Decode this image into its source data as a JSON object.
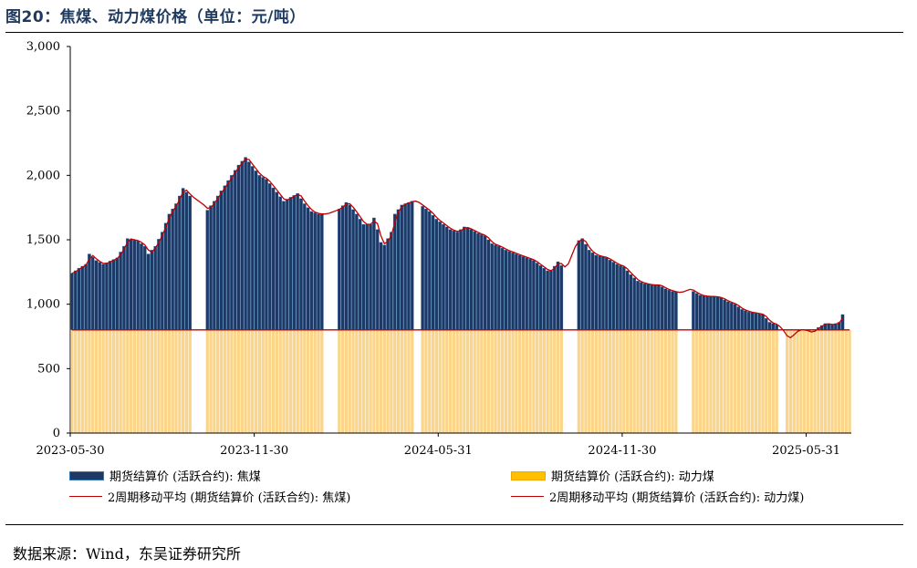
{
  "figure": {
    "title": "图20：焦煤、动力煤价格（单位：元/吨）",
    "source": "数据来源：Wind，东吴证券研究所"
  },
  "legend": {
    "coking_bar": "期货结算价 (活跃合约): 焦煤",
    "thermal_bar": "期货结算价 (活跃合约): 动力煤",
    "coking_ma": "2周期移动平均 (期货结算价 (活跃合约): 焦煤)",
    "thermal_ma": "2周期移动平均 (期货结算价 (活跃合约): 动力煤)"
  },
  "colors": {
    "coking": "#1f3864",
    "coking_edge": "#2e75b6",
    "thermal": "#ffc000",
    "thermal_fill": "#fbd58a",
    "ma": "#c00000"
  },
  "chart_data": {
    "type": "bar",
    "title": "焦煤、动力煤价格（单位：元/吨）",
    "ylim": [
      0,
      3000
    ],
    "yticks": [
      0,
      500,
      1000,
      1500,
      2000,
      2500,
      3000
    ],
    "ytick_labels": [
      "0",
      "500",
      "1,000",
      "1,500",
      "2,000",
      "2,500",
      "3,000"
    ],
    "xtick_labels": [
      "2023-05-30",
      "2023-11-30",
      "2024-05-31",
      "2024-11-30",
      "2025-05-31"
    ],
    "xtick_index": [
      0,
      53,
      106,
      159,
      212
    ],
    "n_points": 225,
    "gaps": [
      [
        35,
        38
      ],
      [
        73,
        76
      ],
      [
        99,
        100
      ],
      [
        142,
        145
      ],
      [
        175,
        178
      ],
      [
        204,
        205
      ]
    ],
    "series": [
      {
        "name": "期货结算价 (活跃合约): 焦煤",
        "knots": [
          [
            0,
            1240
          ],
          [
            2,
            1280
          ],
          [
            4,
            1310
          ],
          [
            5,
            1390
          ],
          [
            7,
            1340
          ],
          [
            9,
            1310
          ],
          [
            13,
            1360
          ],
          [
            15,
            1450
          ],
          [
            16,
            1510
          ],
          [
            19,
            1490
          ],
          [
            21,
            1450
          ],
          [
            22,
            1390
          ],
          [
            24,
            1450
          ],
          [
            26,
            1560
          ],
          [
            28,
            1700
          ],
          [
            30,
            1780
          ],
          [
            32,
            1900
          ],
          [
            34,
            1840
          ],
          [
            38,
            1760
          ],
          [
            39,
            1730
          ],
          [
            41,
            1800
          ],
          [
            43,
            1880
          ],
          [
            46,
            2000
          ],
          [
            48,
            2080
          ],
          [
            50,
            2140
          ],
          [
            52,
            2070
          ],
          [
            54,
            2000
          ],
          [
            56,
            1970
          ],
          [
            59,
            1870
          ],
          [
            61,
            1800
          ],
          [
            63,
            1830
          ],
          [
            65,
            1860
          ],
          [
            67,
            1780
          ],
          [
            69,
            1720
          ],
          [
            71,
            1700
          ],
          [
            73,
            1700
          ],
          [
            77,
            1740
          ],
          [
            79,
            1790
          ],
          [
            80,
            1770
          ],
          [
            82,
            1700
          ],
          [
            84,
            1620
          ],
          [
            86,
            1620
          ],
          [
            87,
            1670
          ],
          [
            88,
            1580
          ],
          [
            89,
            1480
          ],
          [
            90,
            1460
          ],
          [
            92,
            1560
          ],
          [
            93,
            1700
          ],
          [
            95,
            1770
          ],
          [
            98,
            1800
          ],
          [
            99,
            1800
          ],
          [
            101,
            1760
          ],
          [
            103,
            1720
          ],
          [
            105,
            1660
          ],
          [
            107,
            1620
          ],
          [
            109,
            1580
          ],
          [
            111,
            1560
          ],
          [
            113,
            1600
          ],
          [
            115,
            1580
          ],
          [
            117,
            1550
          ],
          [
            119,
            1530
          ],
          [
            121,
            1470
          ],
          [
            123,
            1450
          ],
          [
            125,
            1420
          ],
          [
            127,
            1400
          ],
          [
            129,
            1380
          ],
          [
            131,
            1360
          ],
          [
            133,
            1340
          ],
          [
            135,
            1300
          ],
          [
            137,
            1260
          ],
          [
            138,
            1260
          ],
          [
            140,
            1330
          ],
          [
            141,
            1300
          ],
          [
            142,
            1280
          ],
          [
            145,
            1480
          ],
          [
            147,
            1510
          ],
          [
            149,
            1420
          ],
          [
            151,
            1380
          ],
          [
            154,
            1360
          ],
          [
            157,
            1310
          ],
          [
            159,
            1290
          ],
          [
            161,
            1230
          ],
          [
            163,
            1180
          ],
          [
            165,
            1160
          ],
          [
            167,
            1150
          ],
          [
            169,
            1150
          ],
          [
            171,
            1120
          ],
          [
            173,
            1100
          ],
          [
            175,
            1090
          ],
          [
            178,
            1120
          ],
          [
            179,
            1100
          ],
          [
            181,
            1070
          ],
          [
            183,
            1060
          ],
          [
            185,
            1060
          ],
          [
            187,
            1050
          ],
          [
            189,
            1020
          ],
          [
            191,
            1000
          ],
          [
            193,
            960
          ],
          [
            195,
            940
          ],
          [
            197,
            930
          ],
          [
            199,
            920
          ],
          [
            201,
            860
          ],
          [
            203,
            840
          ],
          [
            205,
            780
          ],
          [
            206,
            730
          ],
          [
            207,
            750
          ],
          [
            209,
            800
          ],
          [
            211,
            800
          ],
          [
            213,
            780
          ],
          [
            215,
            820
          ],
          [
            217,
            850
          ],
          [
            219,
            840
          ],
          [
            221,
            860
          ],
          [
            222,
            920
          ]
        ]
      },
      {
        "name": "期货结算价 (活跃合约): 动力煤",
        "knots": [
          [
            0,
            801
          ],
          [
            222,
            801
          ]
        ]
      }
    ]
  }
}
